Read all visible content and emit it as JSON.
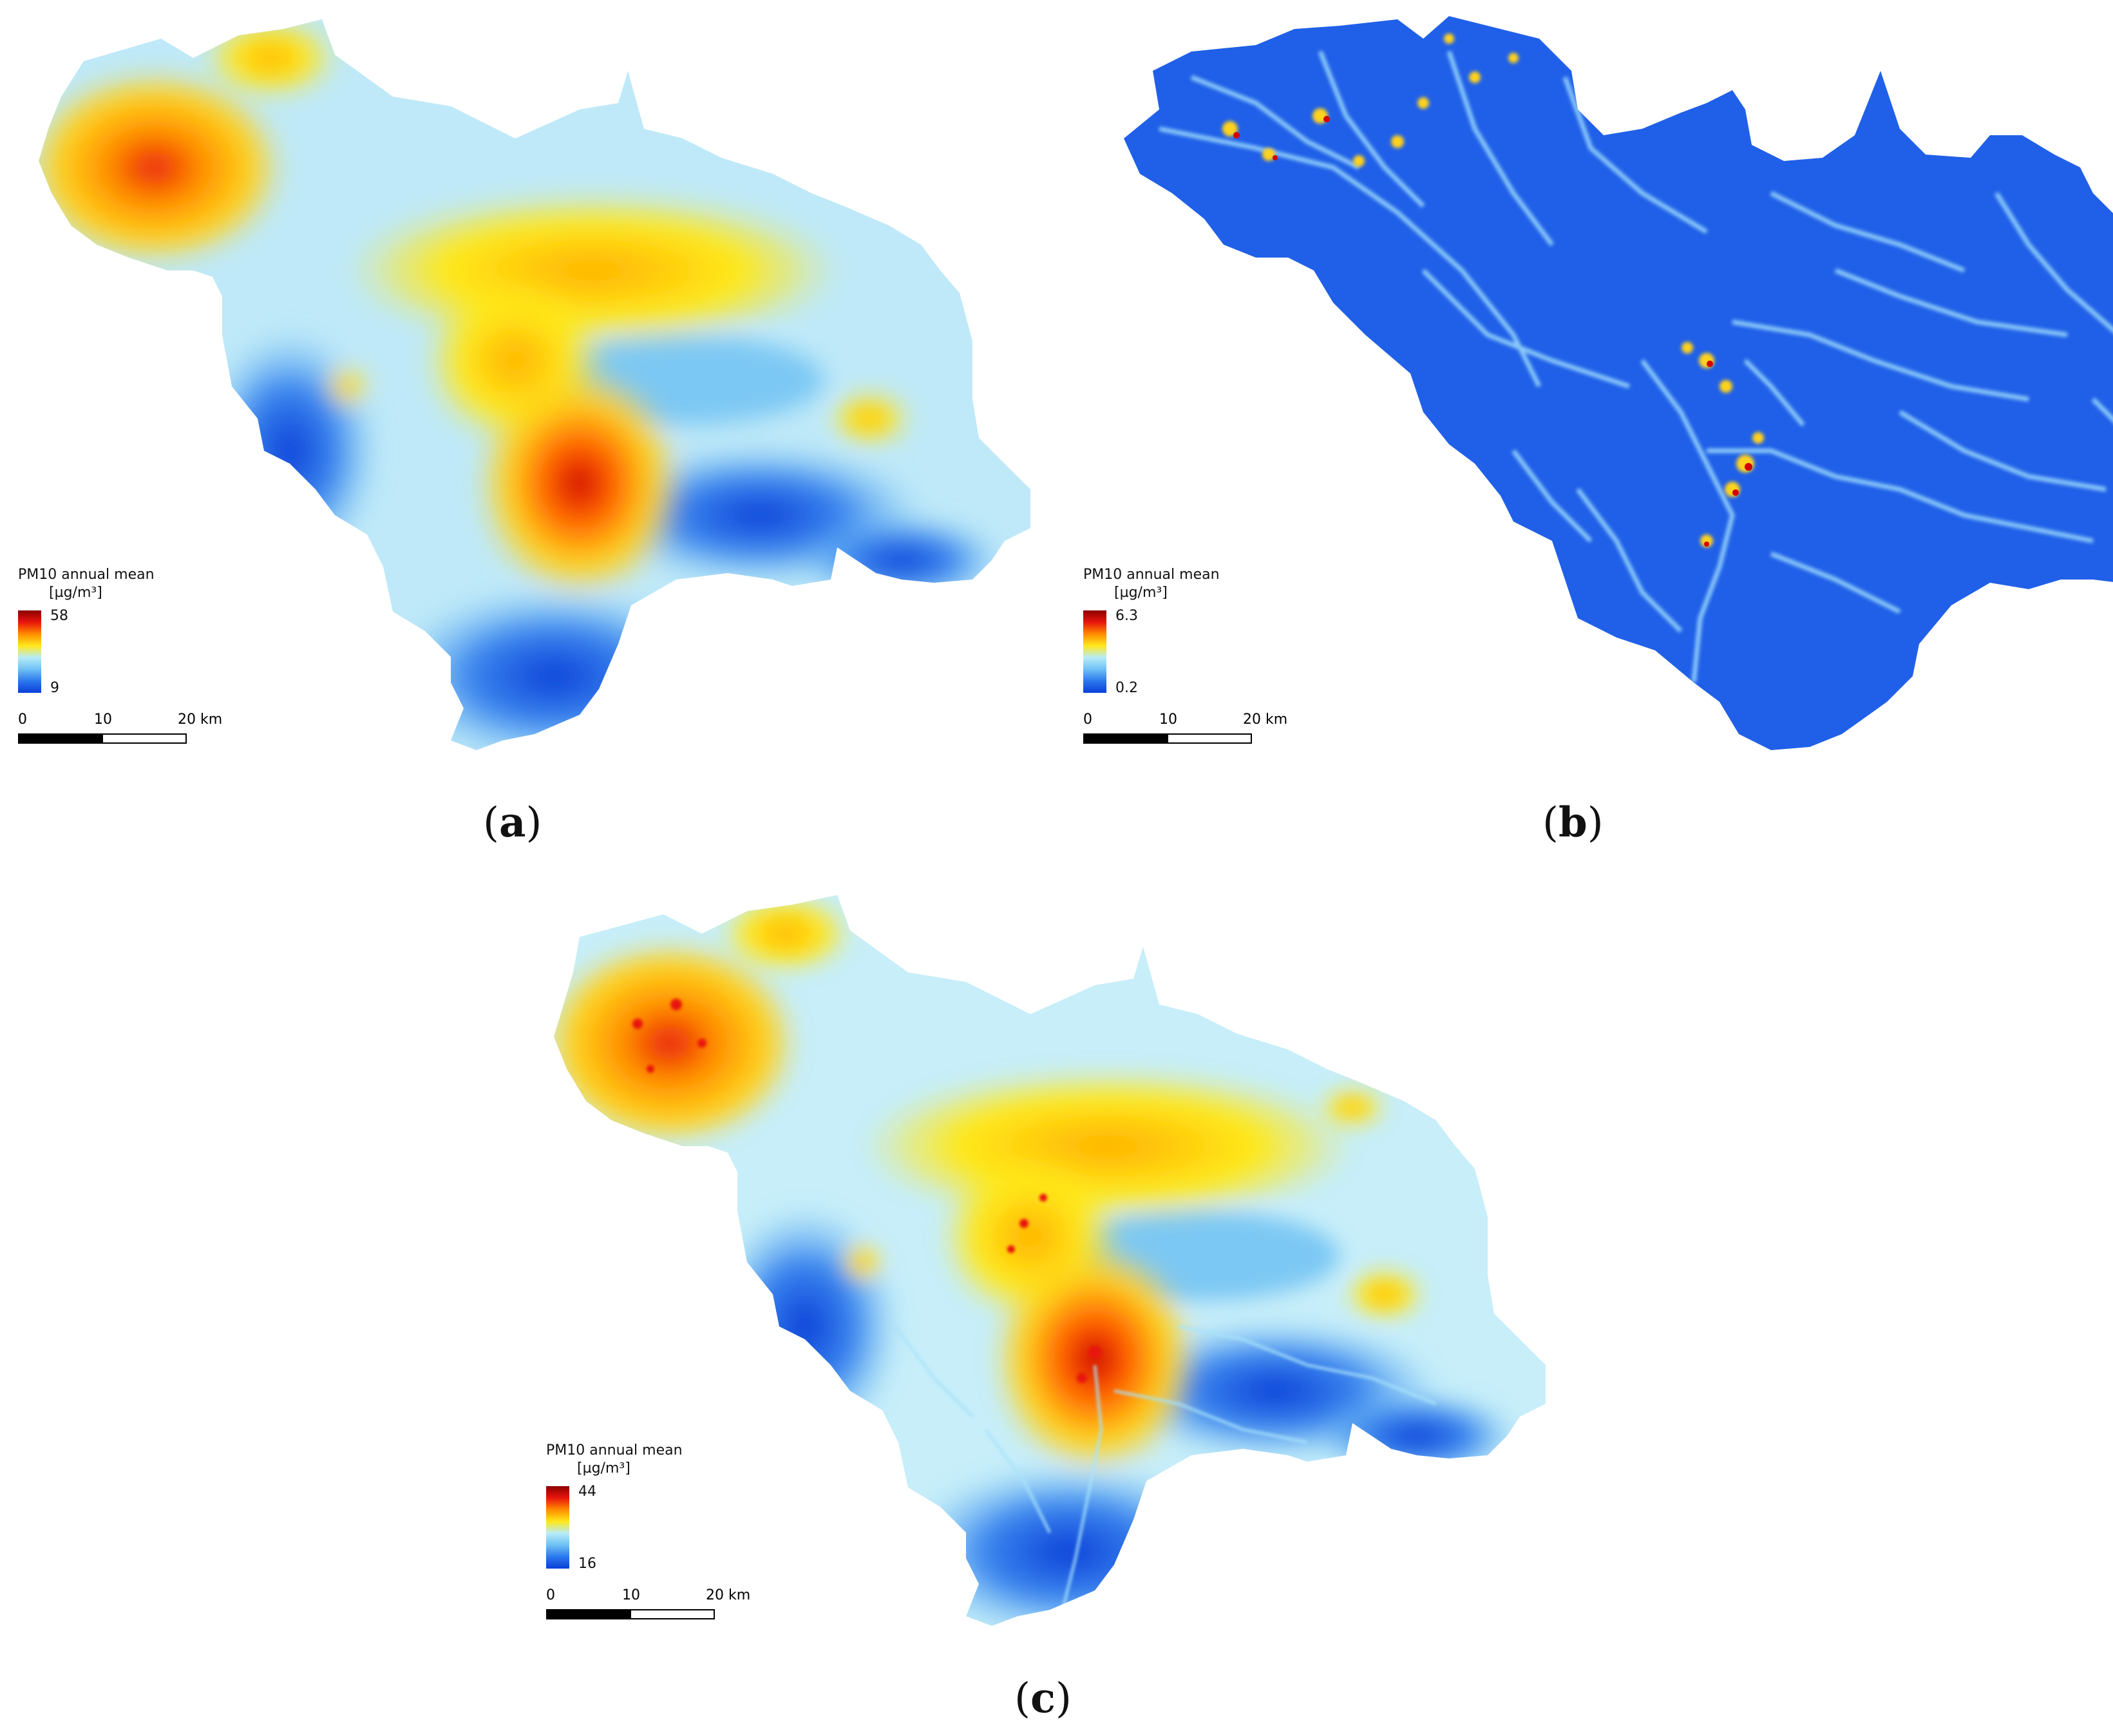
{
  "panels": [
    {
      "id": "a",
      "caption_letter": "a",
      "legend": {
        "title": "PM10 annual mean",
        "unit": "[µg/m³]",
        "max": "58",
        "min": "9"
      },
      "scalebar": {
        "labels": [
          "0",
          "10",
          "20 km"
        ]
      },
      "color_scheme": "smooth"
    },
    {
      "id": "b",
      "caption_letter": "b",
      "legend": {
        "title": "PM10 annual mean",
        "unit": "[µg/m³]",
        "max": "6.3",
        "min": "0.2"
      },
      "scalebar": {
        "labels": [
          "0",
          "10",
          "20 km"
        ]
      },
      "color_scheme": "roads"
    },
    {
      "id": "c",
      "caption_letter": "c",
      "legend": {
        "title": "PM10 annual mean",
        "unit": "[µg/m³]",
        "max": "44",
        "min": "16"
      },
      "scalebar": {
        "labels": [
          "0",
          "10",
          "20 km"
        ]
      },
      "color_scheme": "combined"
    }
  ],
  "colors": {
    "ramp": [
      "#8b0000",
      "#e8160c",
      "#ff8c00",
      "#ffe81a",
      "#b8ecf7",
      "#6ec0f5",
      "#2a78ee",
      "#0a3fd8"
    ],
    "low": "#1f5fe8",
    "mid_low": "#8fd1f6",
    "mid": "#d8f3fb",
    "high": "#ffd21a",
    "very_high": "#ff7a00",
    "max": "#c80000",
    "roads_base": "#1d55e6",
    "roads_line": "#a9e3fb"
  }
}
